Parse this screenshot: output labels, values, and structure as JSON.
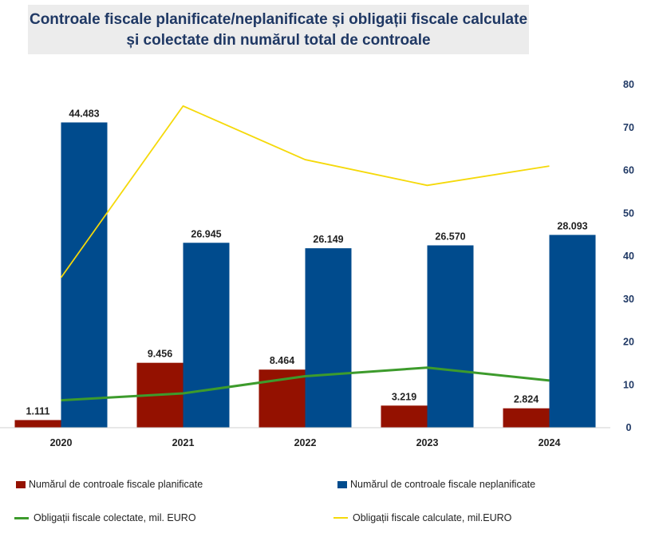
{
  "title": {
    "line1": "Controale fiscale planificate/neplanificate și obligații fiscale calculate",
    "line2": "și colectate din numărul total de controale"
  },
  "colors": {
    "planned": "#941100",
    "unplanned": "#004b8d",
    "collected": "#3d9b2c",
    "calculated": "#f5d90a"
  },
  "chart_data": {
    "type": "bar",
    "categories": [
      "2020",
      "2021",
      "2022",
      "2023",
      "2024"
    ],
    "series": [
      {
        "name": "Numărul de controale fiscale planificate",
        "kind": "bar",
        "axis": "left",
        "values": [
          1111,
          9456,
          8464,
          3219,
          2824
        ],
        "labels": [
          "1.111",
          "9.456",
          "8.464",
          "3.219",
          "2.824"
        ]
      },
      {
        "name": "Numărul de controale fiscale neplanificate",
        "kind": "bar",
        "axis": "left",
        "values": [
          44483,
          26945,
          26149,
          26570,
          28093
        ],
        "labels": [
          "44.483",
          "26.945",
          "26.149",
          "26.570",
          "28.093"
        ]
      },
      {
        "name": "Obligații fiscale colectate, mil. EURO",
        "kind": "line",
        "axis": "right",
        "values": [
          6.4,
          8,
          12,
          14,
          11
        ]
      },
      {
        "name": "Obligații fiscale calculate, mil.EURO",
        "kind": "line",
        "axis": "right",
        "values": [
          35,
          75,
          62.5,
          56.5,
          61
        ]
      }
    ],
    "left_axis": {
      "range": [
        0,
        50000
      ],
      "visible": false
    },
    "right_axis": {
      "range": [
        0,
        80
      ],
      "ticks": [
        0,
        10,
        20,
        30,
        40,
        50,
        60,
        70,
        80
      ]
    },
    "grid": false,
    "legend_position": "bottom"
  }
}
